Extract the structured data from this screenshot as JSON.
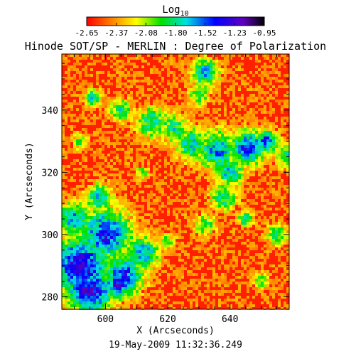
{
  "chart_data": {
    "type": "heatmap",
    "title": "Hinode SOT/SP - MERLIN : Degree of Polarization",
    "colorbar": {
      "label": "Log",
      "label_subscript": "10",
      "tick_labels": [
        "-2.65",
        "-2.37",
        "-2.08",
        "-1.80",
        "-1.52",
        "-1.23",
        "-0.95"
      ],
      "range": [
        -2.65,
        -0.95
      ],
      "colormap": "rainbow (red-yellow-green-cyan-blue-purple-black)"
    },
    "xlabel": "X (Arcseconds)",
    "ylabel": "Y (Arcseconds)",
    "xlim": [
      586,
      659
    ],
    "ylim": [
      276,
      358
    ],
    "xticks": [
      600,
      620,
      640
    ],
    "yticks": [
      280,
      300,
      320,
      340
    ],
    "grid": false,
    "timestamp": "19-May-2009 11:32:36.249",
    "colors": {
      "background": "#ffffff",
      "dominant": "#ff2000",
      "strong_polarization": "#1a1aff"
    }
  }
}
